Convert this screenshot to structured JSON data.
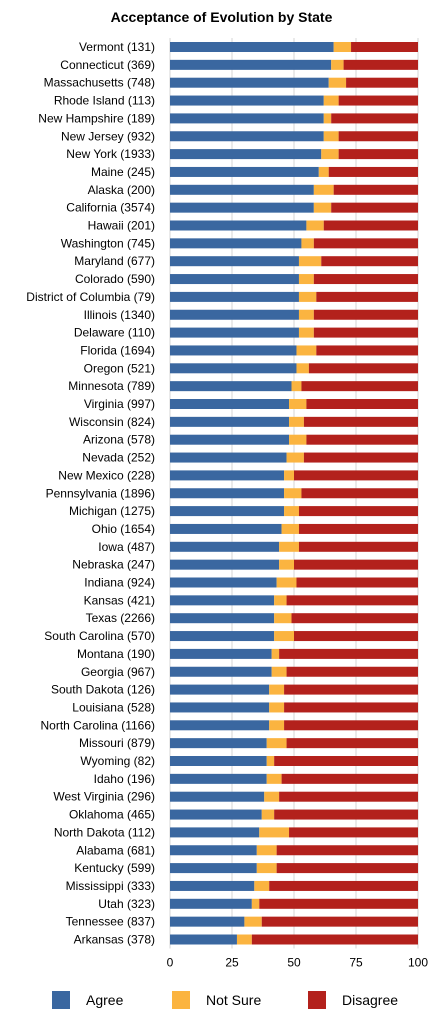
{
  "chart_data": {
    "type": "bar",
    "orientation": "horizontal",
    "stacked": true,
    "title": "Acceptance of Evolution by State",
    "xlim": [
      0,
      100
    ],
    "xticks": [
      "0",
      "25",
      "50",
      "75",
      "100"
    ],
    "grid": true,
    "legend_position": "bottom",
    "categories": [
      "Vermont (131)",
      "Connecticut (369)",
      "Massachusetts (748)",
      "Rhode Island (113)",
      "New Hampshire (189)",
      "New Jersey (932)",
      "New York (1933)",
      "Maine (245)",
      "Alaska (200)",
      "California (3574)",
      "Hawaii (201)",
      "Washington (745)",
      "Maryland (677)",
      "Colorado (590)",
      "District of Columbia (79)",
      "Illinois (1340)",
      "Delaware (110)",
      "Florida (1694)",
      "Oregon (521)",
      "Minnesota (789)",
      "Virginia (997)",
      "Wisconsin (824)",
      "Arizona (578)",
      "Nevada (252)",
      "New Mexico (228)",
      "Pennsylvania (1896)",
      "Michigan (1275)",
      "Ohio (1654)",
      "Iowa (487)",
      "Nebraska (247)",
      "Indiana (924)",
      "Kansas (421)",
      "Texas (2266)",
      "South Carolina (570)",
      "Montana (190)",
      "Georgia (967)",
      "South Dakota (126)",
      "Louisiana (528)",
      "North Carolina (1166)",
      "Missouri (879)",
      "Wyoming (82)",
      "Idaho (196)",
      "West Virginia (296)",
      "Oklahoma (465)",
      "North Dakota (112)",
      "Alabama (681)",
      "Kentucky (599)",
      "Mississippi (333)",
      "Utah (323)",
      "Tennessee (837)",
      "Arkansas (378)"
    ],
    "series": [
      {
        "name": "Agree",
        "color": "#3a67a0",
        "values": [
          66,
          65,
          64,
          62,
          62,
          62,
          61,
          60,
          58,
          58,
          55,
          53,
          52,
          52,
          52,
          52,
          52,
          51,
          51,
          49,
          48,
          48,
          48,
          47,
          46,
          46,
          46,
          45,
          44,
          44,
          43,
          42,
          42,
          42,
          41,
          41,
          40,
          40,
          40,
          39,
          39,
          39,
          38,
          37,
          36,
          35,
          35,
          34,
          33,
          30,
          27
        ]
      },
      {
        "name": "Not Sure",
        "color": "#fbb440",
        "values": [
          7,
          5,
          7,
          6,
          3,
          6,
          7,
          4,
          8,
          7,
          7,
          5,
          9,
          6,
          7,
          6,
          6,
          8,
          5,
          4,
          7,
          6,
          7,
          7,
          4,
          7,
          6,
          7,
          8,
          6,
          8,
          5,
          7,
          8,
          3,
          6,
          6,
          6,
          6,
          8,
          3,
          6,
          6,
          5,
          12,
          8,
          8,
          6,
          3,
          7,
          6
        ]
      },
      {
        "name": "Disagree",
        "color": "#b3211c",
        "values": [
          27,
          30,
          29,
          32,
          35,
          32,
          32,
          36,
          34,
          35,
          38,
          42,
          39,
          42,
          41,
          42,
          42,
          41,
          44,
          47,
          45,
          46,
          45,
          46,
          50,
          47,
          48,
          48,
          48,
          50,
          49,
          53,
          51,
          50,
          56,
          53,
          54,
          54,
          54,
          53,
          58,
          55,
          56,
          58,
          52,
          57,
          57,
          60,
          64,
          63,
          67
        ]
      }
    ]
  }
}
